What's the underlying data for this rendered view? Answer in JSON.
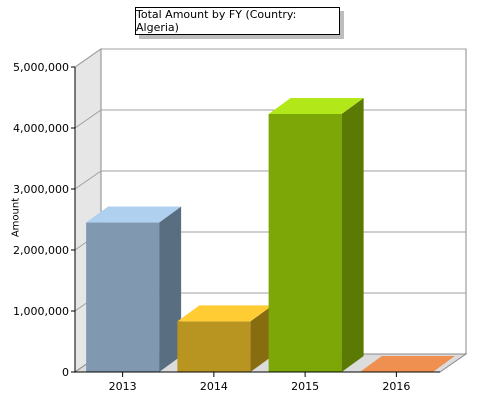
{
  "chart_data": {
    "type": "bar",
    "title": "Total Amount by FY (Country: Algeria)",
    "xlabel": "",
    "ylabel": "Amount",
    "categories": [
      "2013",
      "2014",
      "2015",
      "2016"
    ],
    "values": [
      2450000,
      830000,
      4230000,
      0
    ],
    "ylim": [
      0,
      5000000
    ],
    "yticks": [
      0,
      1000000,
      2000000,
      3000000,
      4000000,
      5000000
    ],
    "ytick_labels": [
      "0",
      "1,000,000",
      "2,000,000",
      "3,000,000",
      "4,000,000",
      "5,000,000"
    ],
    "grid": true,
    "legend": "none",
    "style": "3d",
    "colors": [
      {
        "front": "#8098b0",
        "side": "#5a6e82",
        "top": "#b0d0f0"
      },
      {
        "front": "#b89520",
        "side": "#876c10",
        "top": "#ffcc33"
      },
      {
        "front": "#7da607",
        "side": "#5a7a03",
        "top": "#b2e81a"
      },
      {
        "front": "#e88848",
        "side": "#b86030",
        "top": "#f09050"
      }
    ]
  }
}
